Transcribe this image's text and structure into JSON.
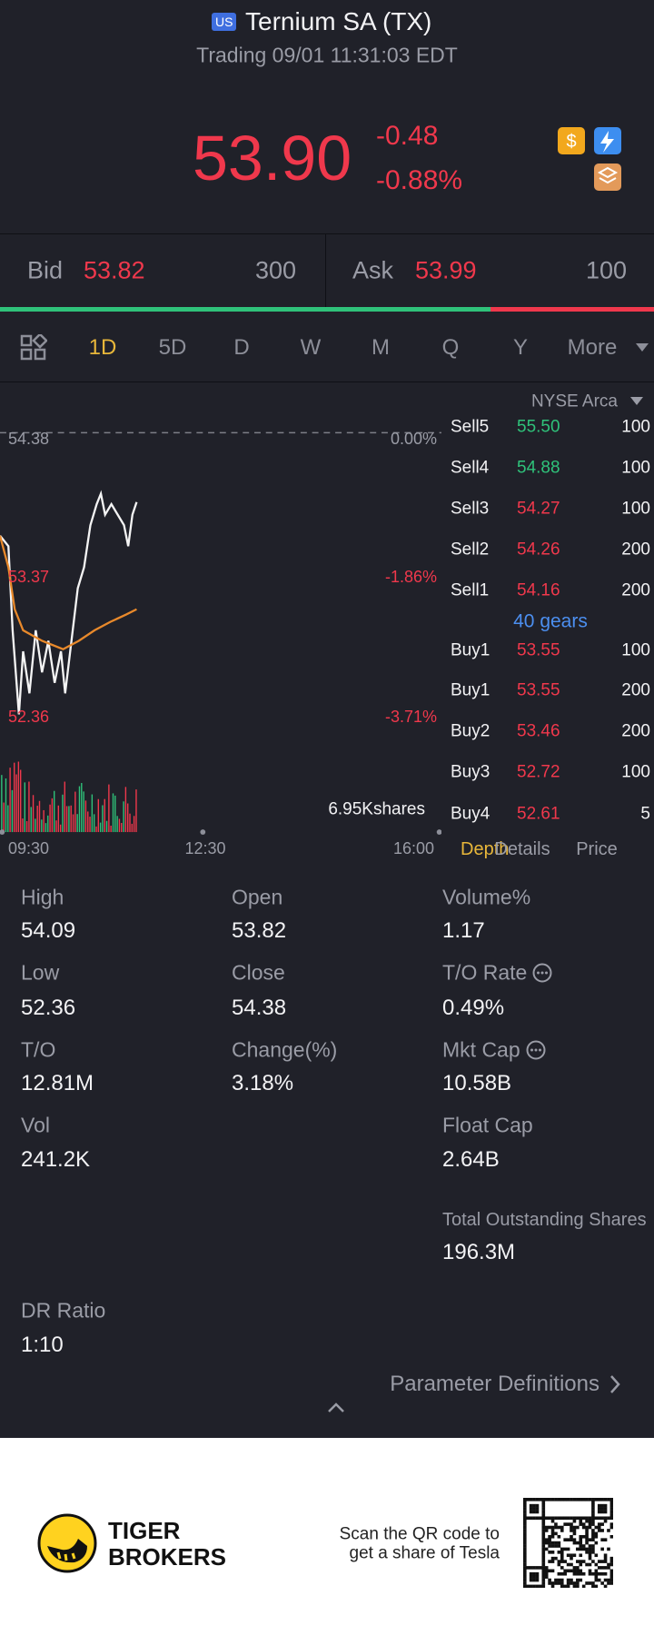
{
  "header": {
    "badge": "US",
    "title": "Ternium SA (TX)",
    "status": "Trading 09/01 11:31:03 EDT"
  },
  "quote": {
    "price": "53.90",
    "change": "-0.48",
    "change_pct": "-0.88%"
  },
  "bid_ask": {
    "bid": {
      "label": "Bid",
      "price": "53.82",
      "size": "300"
    },
    "ask": {
      "label": "Ask",
      "price": "53.99",
      "size": "100"
    }
  },
  "tabs": [
    "1D",
    "5D",
    "D",
    "W",
    "M",
    "Q",
    "Y",
    "More"
  ],
  "chart": {
    "prev_close": "54.38",
    "prev_close_pct": "0.00%",
    "mid_price": "53.37",
    "mid_pct": "-1.86%",
    "low_price": "52.36",
    "low_pct": "-3.71%",
    "volume": "6.95Kshares",
    "times": [
      "09:30",
      "12:30",
      "16:00"
    ]
  },
  "order_book": {
    "exchange": "NYSE Arca",
    "sell": [
      [
        "Sell5",
        "55.50",
        "100"
      ],
      [
        "Sell4",
        "54.88",
        "100"
      ],
      [
        "Sell3",
        "54.27",
        "100"
      ],
      [
        "Sell2",
        "54.26",
        "200"
      ],
      [
        "Sell1",
        "54.16",
        "200"
      ]
    ],
    "gears": "40 gears",
    "buy": [
      [
        "Buy1",
        "53.55",
        "100"
      ],
      [
        "Buy1",
        "53.55",
        "200"
      ],
      [
        "Buy2",
        "53.46",
        "200"
      ],
      [
        "Buy3",
        "52.72",
        "100"
      ],
      [
        "Buy4",
        "52.61",
        "5"
      ]
    ],
    "tabs": [
      "Depth",
      "Details",
      "Price"
    ]
  },
  "stats": [
    [
      {
        "label": "High",
        "value": "54.09"
      },
      {
        "label": "Open",
        "value": "53.82"
      },
      {
        "label": "Volume%",
        "value": "1.17"
      }
    ],
    [
      {
        "label": "Low",
        "value": "52.36"
      },
      {
        "label": "Close",
        "value": "54.38"
      },
      {
        "label": "T/O Rate",
        "value": "0.49%"
      }
    ],
    [
      {
        "label": "T/O",
        "value": "12.81M"
      },
      {
        "label": "Change(%)",
        "value": "3.18%"
      },
      {
        "label": "Mkt Cap",
        "value": "10.58B"
      }
    ],
    [
      {
        "label": "Vol",
        "value": "241.2K"
      },
      null,
      {
        "label": "Float Cap",
        "value": "2.64B"
      }
    ],
    [
      null,
      null,
      {
        "label": "Total Outstanding Shares",
        "value": "196.3M"
      }
    ],
    [
      {
        "label": "DR Ratio",
        "value": "1:10"
      },
      null,
      null
    ]
  ],
  "footer": {
    "link": "Parameter Definitions"
  },
  "banner": {
    "brand_line1": "TIGER",
    "brand_line2": "BROKERS",
    "promo_line1": "Scan the QR code to",
    "promo_line2": "get a share of Tesla"
  }
}
